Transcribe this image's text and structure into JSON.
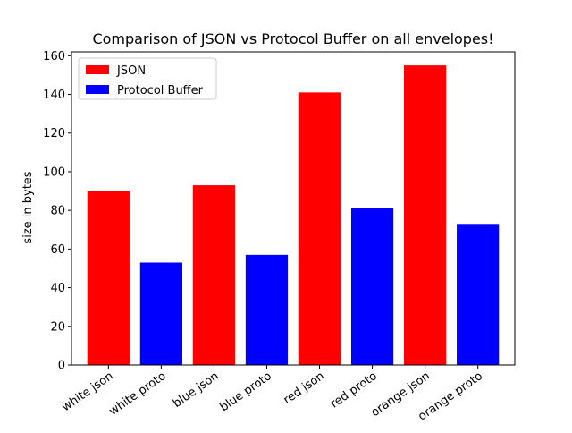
{
  "chart_data": {
    "type": "bar",
    "title": "Comparison of JSON vs Protocol Buffer on all envelopes!",
    "xlabel": "",
    "ylabel": "size in bytes",
    "categories": [
      "white json",
      "white proto",
      "blue json",
      "blue proto",
      "red json",
      "red proto",
      "orange json",
      "orange proto"
    ],
    "values": [
      90,
      53,
      93,
      57,
      141,
      81,
      155,
      73
    ],
    "bar_series": [
      "JSON",
      "Protocol Buffer",
      "JSON",
      "Protocol Buffer",
      "JSON",
      "Protocol Buffer",
      "JSON",
      "Protocol Buffer"
    ],
    "legend": [
      {
        "name": "JSON",
        "color": "#ff0000"
      },
      {
        "name": "Protocol Buffer",
        "color": "#0000ff"
      }
    ],
    "legend_position": "top-left",
    "ylim": [
      0,
      162
    ],
    "yticks": [
      0,
      20,
      40,
      60,
      80,
      100,
      120,
      140,
      160
    ],
    "grid": false
  }
}
